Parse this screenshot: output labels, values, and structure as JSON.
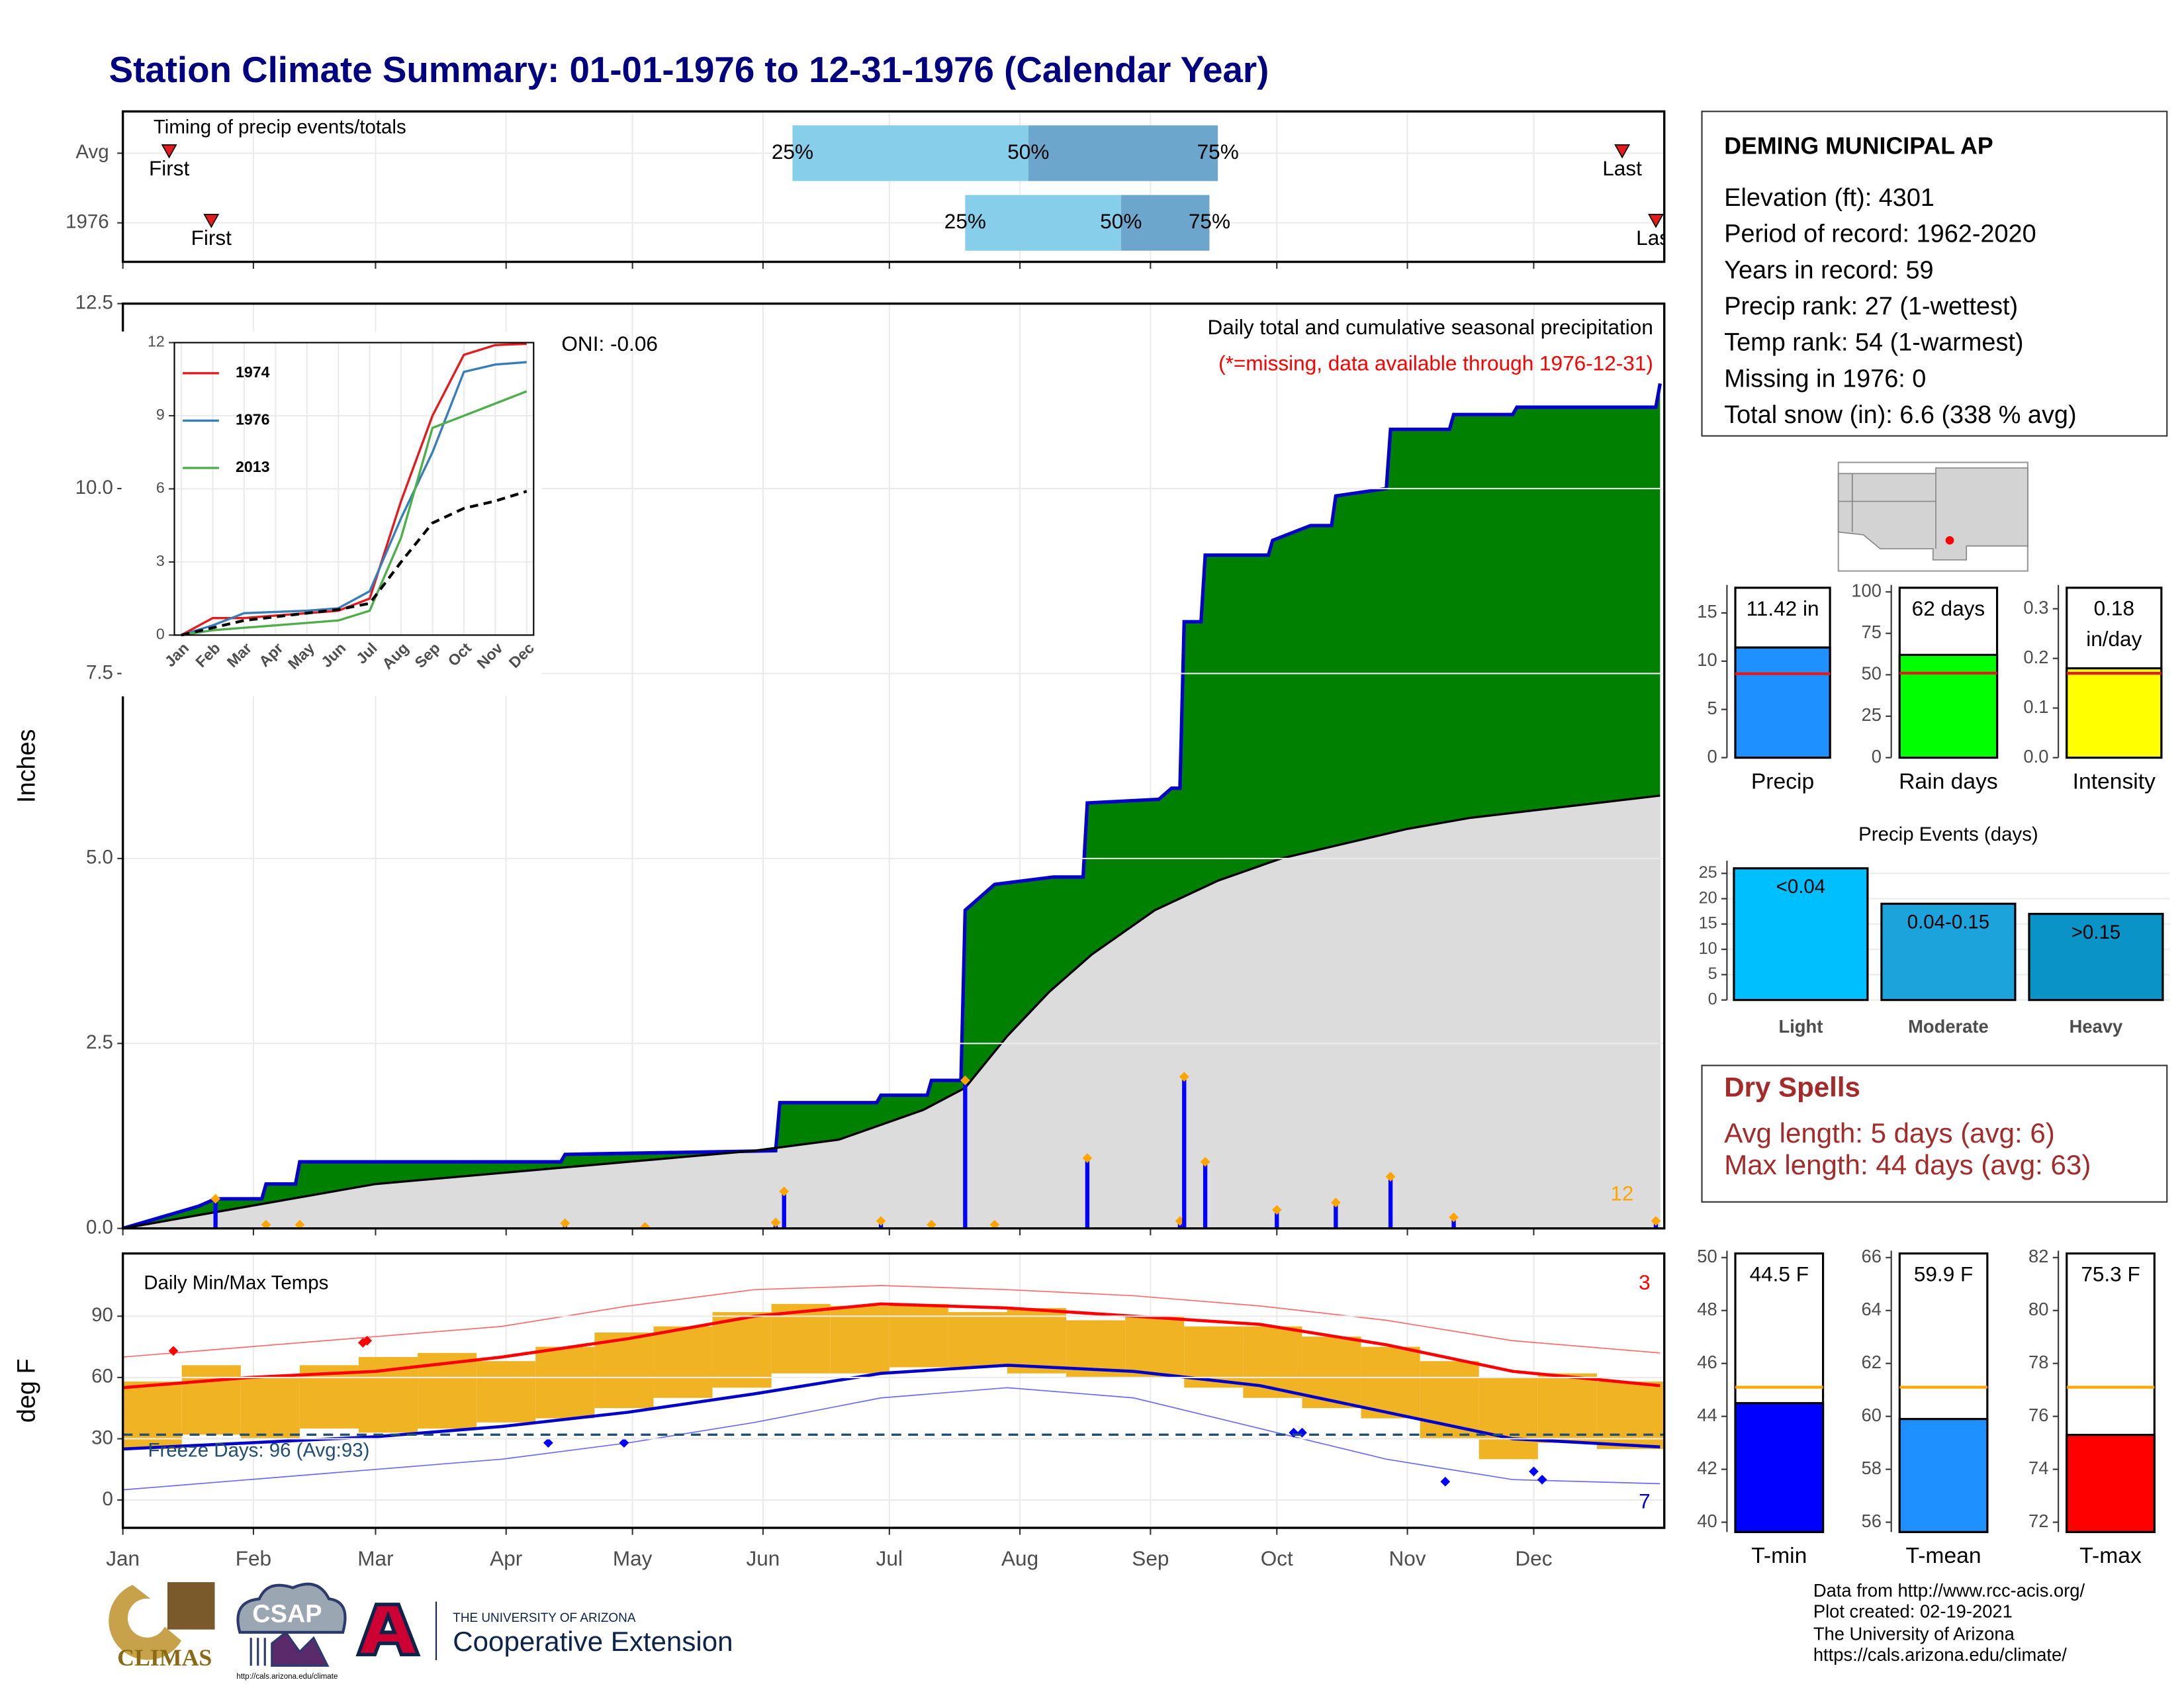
{
  "title": "Station Climate Summary: 01-01-1976 to 12-31-1976 (Calendar Year)",
  "station": {
    "name": "DEMING MUNICIPAL AP",
    "lines": [
      "Elevation (ft): 4301",
      "Period of record: 1962-2020",
      "Years in record: 59",
      "Precip rank: 27 (1-wettest)",
      "Temp rank: 54 (1-warmest)",
      "Missing in 1976: 0",
      "Total snow (in): 6.6 (338 % avg)"
    ]
  },
  "dry_spells": {
    "title": "Dry Spells",
    "lines": [
      "Avg length: 5 days (avg: 6)",
      "Max length: 44 days (avg: 63)"
    ]
  },
  "footer": {
    "climas": "CLIMAS",
    "csap": "CSAP",
    "csap_url": "http://cals.arizona.edu/climate",
    "university": "THE UNIVERSITY OF ARIZONA",
    "extension": "Cooperative Extension",
    "credits": [
      "Data from http://www.rcc-acis.org/",
      "Plot created: 02-19-2021",
      "The University of Arizona",
      "https://cals.arizona.edu/climate/"
    ]
  },
  "chart_data": [
    {
      "type": "timing",
      "title": "Timing of precip events/totals",
      "categories": [
        "Avg",
        "1976"
      ],
      "first": [
        11,
        21
      ],
      "last": [
        356,
        364
      ],
      "q25": [
        159,
        200
      ],
      "q50": [
        215,
        237
      ],
      "q75": [
        260,
        258
      ],
      "quantile_labels": [
        "25%",
        "50%",
        "75%"
      ],
      "first_label": "First",
      "last_label": "Last",
      "colors": [
        "#87ceeb",
        "#6ca6cd"
      ],
      "marker_color": "#e41a1c",
      "xlim": [
        0,
        366
      ]
    },
    {
      "type": "cumulative",
      "title": "Daily total and cumulative seasonal precipitation",
      "subtitle": "(*=missing, data available through 1976-12-31)",
      "annotation": "ONI: -0.06",
      "corner_value": 12,
      "y_label": "Inches",
      "xlim": [
        0,
        366
      ],
      "ylim": [
        0,
        12.5
      ],
      "grid": true,
      "yticks": [
        {
          "value": 0,
          "label": "0.0"
        },
        2.5,
        {
          "value": 5,
          "label": "5.0"
        },
        7.5,
        {
          "value": 10,
          "label": "10.0"
        },
        12.5
      ],
      "cumulative": {
        "color": "#0000cd",
        "fill": "#008000",
        "x": [
          0,
          18,
          22,
          33,
          34,
          41,
          42,
          104,
          105,
          155,
          156,
          179,
          180,
          191,
          192,
          199,
          200,
          203,
          207,
          221,
          228,
          229,
          246,
          249,
          251,
          252,
          256,
          257,
          272,
          273,
          282,
          287,
          288,
          300,
          301,
          315,
          316,
          330,
          331,
          364,
          365
        ],
        "values": [
          0,
          0.3,
          0.4,
          0.4,
          0.6,
          0.6,
          0.9,
          0.9,
          1.0,
          1.05,
          1.7,
          1.7,
          1.8,
          1.8,
          2.0,
          2.0,
          4.3,
          4.45,
          4.65,
          4.75,
          4.75,
          5.75,
          5.8,
          5.95,
          5.95,
          8.2,
          8.2,
          9.1,
          9.1,
          9.3,
          9.5,
          9.5,
          9.9,
          10.0,
          10.8,
          10.8,
          11.0,
          11.0,
          11.1,
          11.1,
          11.42
        ]
      },
      "average": {
        "color": "#000000",
        "fill": "#dcdcdc",
        "x": [
          0,
          30,
          60,
          90,
          120,
          150,
          170,
          190,
          200,
          210,
          220,
          230,
          245,
          260,
          275,
          290,
          305,
          320,
          335,
          350,
          365
        ],
        "values": [
          0,
          0.3,
          0.6,
          0.75,
          0.9,
          1.05,
          1.2,
          1.6,
          1.9,
          2.6,
          3.2,
          3.7,
          4.3,
          4.7,
          5.0,
          5.2,
          5.4,
          5.55,
          5.65,
          5.75,
          5.85
        ]
      },
      "daily": {
        "color": "#0000ff",
        "marker_color": "#ffa500",
        "x": [
          22,
          34,
          42,
          105,
          124,
          155,
          157,
          180,
          192,
          200,
          207,
          229,
          251,
          252,
          257,
          274,
          288,
          301,
          316,
          364
        ],
        "values": [
          0.4,
          0.05,
          0.05,
          0.07,
          0.02,
          0.08,
          0.5,
          0.1,
          0.05,
          2.0,
          0.05,
          0.95,
          0.1,
          2.05,
          0.9,
          0.25,
          0.35,
          0.7,
          0.15,
          0.1
        ]
      }
    },
    {
      "type": "line",
      "categories": [
        "Jan",
        "Feb",
        "Mar",
        "Apr",
        "May",
        "Jun",
        "Jul",
        "Aug",
        "Sep",
        "Oct",
        "Nov",
        "Dec"
      ],
      "ylim": [
        0,
        12
      ],
      "yticks": [
        0,
        3,
        6,
        9,
        12
      ],
      "grid": true,
      "series": [
        {
          "name": "1974",
          "color": "#e41a1c",
          "values": [
            0,
            0.7,
            0.7,
            0.8,
            0.9,
            1.0,
            1.5,
            5.5,
            9.0,
            11.5,
            11.9,
            11.95
          ]
        },
        {
          "name": "1976",
          "color": "#377eb8",
          "values": [
            0,
            0.4,
            0.9,
            0.95,
            1.0,
            1.1,
            1.8,
            4.8,
            7.5,
            10.8,
            11.1,
            11.2
          ]
        },
        {
          "name": "2013",
          "color": "#4daf4a",
          "values": [
            0,
            0.2,
            0.3,
            0.4,
            0.5,
            0.6,
            1.0,
            4.0,
            8.5,
            9.0,
            9.5,
            10.0
          ]
        },
        {
          "color": "#000000",
          "dash": true,
          "values": [
            0,
            0.3,
            0.6,
            0.75,
            0.9,
            1.05,
            1.3,
            3.0,
            4.6,
            5.2,
            5.5,
            5.9
          ]
        }
      ]
    },
    {
      "type": "bar",
      "categories": [
        "Precip"
      ],
      "values": [
        11.42
      ],
      "value_labels": [
        "11.42 in"
      ],
      "average": 8.7,
      "avg_color": "#e41a1c",
      "color": "#1e90ff",
      "ylim": [
        0,
        17.9
      ],
      "yticks": [
        0,
        5,
        10,
        15
      ]
    },
    {
      "type": "bar",
      "categories": [
        "Rain days"
      ],
      "values": [
        62
      ],
      "value_labels": [
        "62 days"
      ],
      "average": 51,
      "avg_color": "#e41a1c",
      "color": "#00ff00",
      "ylim": [
        0,
        104.2
      ],
      "yticks": [
        0,
        25,
        50,
        75,
        100
      ]
    },
    {
      "type": "bar",
      "categories": [
        "Intensity"
      ],
      "values": [
        0.18
      ],
      "value_labels": [
        "0.18 in/day"
      ],
      "average": 0.17,
      "avg_color": "#e41a1c",
      "color": "#ffff00",
      "ylim": [
        0,
        0.348
      ],
      "yticks": [
        {
          "value": 0,
          "label": "0.0"
        },
        0.1,
        0.2,
        0.3
      ]
    },
    {
      "type": "bar",
      "title": "Precip Events (days)",
      "categories": [
        "Light",
        "Moderate",
        "Heavy"
      ],
      "values": [
        26,
        19,
        17
      ],
      "value_labels": [
        "<0.04",
        "0.04-0.15",
        ">0.15"
      ],
      "colors": [
        "#00bfff",
        "#1ca3dc",
        "#0993c6"
      ],
      "ylim": [
        0,
        27.5
      ],
      "yticks": [
        0,
        5,
        10,
        15,
        20,
        25
      ],
      "grid": true
    },
    {
      "type": "temps",
      "title": "Daily Min/Max Temps",
      "y_label": "deg F",
      "xlim": [
        0,
        366
      ],
      "ylim": [
        -13.6,
        120.7
      ],
      "yticks": [
        0,
        30,
        60,
        90
      ],
      "grid": true,
      "xticks": [
        {
          "value": 0,
          "label": "Jan"
        },
        {
          "value": 31,
          "label": "Feb"
        },
        {
          "value": 60,
          "label": "Mar"
        },
        {
          "value": 91,
          "label": "Apr"
        },
        {
          "value": 121,
          "label": "May"
        },
        {
          "value": 152,
          "label": "Jun"
        },
        {
          "value": 182,
          "label": "Jul"
        },
        {
          "value": 213,
          "label": "Aug"
        },
        {
          "value": 244,
          "label": "Sep"
        },
        {
          "value": 274,
          "label": "Oct"
        },
        {
          "value": 305,
          "label": "Nov"
        },
        {
          "value": 335,
          "label": "Dec"
        }
      ],
      "observed": {
        "color": "#f0b323",
        "x": [
          0,
          14,
          28,
          42,
          56,
          70,
          84,
          98,
          112,
          126,
          140,
          154,
          168,
          182,
          196,
          210,
          224,
          238,
          252,
          266,
          280,
          294,
          308,
          322,
          336,
          350
        ],
        "min": [
          25,
          32,
          30,
          35,
          33,
          35,
          38,
          40,
          45,
          50,
          55,
          62,
          62,
          65,
          65,
          62,
          60,
          60,
          55,
          50,
          45,
          40,
          30,
          20,
          28,
          25
        ],
        "max": [
          58,
          66,
          60,
          66,
          70,
          72,
          68,
          75,
          82,
          85,
          92,
          96,
          95,
          96,
          92,
          94,
          88,
          90,
          85,
          85,
          80,
          75,
          68,
          60,
          62,
          58
        ]
      },
      "normal_max": {
        "color": "#ff0000",
        "x": [
          0,
          30,
          60,
          90,
          120,
          150,
          180,
          210,
          240,
          270,
          300,
          330,
          365
        ],
        "values": [
          55,
          60,
          63,
          70,
          79,
          90,
          96,
          94,
          90,
          86,
          76,
          63,
          56
        ]
      },
      "normal_min": {
        "color": "#0000cd",
        "x": [
          0,
          30,
          60,
          90,
          120,
          150,
          180,
          210,
          240,
          270,
          300,
          330,
          365
        ],
        "values": [
          25,
          28,
          31,
          36,
          43,
          52,
          62,
          66,
          63,
          56,
          43,
          30,
          26
        ]
      },
      "extreme_max": {
        "color": "#ff6a6a",
        "x": [
          0,
          30,
          60,
          90,
          120,
          150,
          180,
          210,
          240,
          270,
          300,
          330,
          365
        ],
        "values": [
          70,
          75,
          80,
          85,
          95,
          103,
          105,
          103,
          100,
          95,
          88,
          78,
          72
        ]
      },
      "extreme_min": {
        "color": "#6a6aff",
        "x": [
          0,
          30,
          60,
          90,
          120,
          150,
          180,
          210,
          240,
          270,
          300,
          330,
          365
        ],
        "values": [
          5,
          10,
          15,
          20,
          28,
          38,
          50,
          55,
          50,
          35,
          20,
          10,
          8
        ]
      },
      "record_highs": {
        "color": "#ff0000",
        "x": [
          12,
          57,
          58
        ],
        "values": [
          73,
          77,
          78
        ]
      },
      "record_lows": {
        "color": "#0000ff",
        "x": [
          101,
          119,
          278,
          280,
          314,
          335,
          337
        ],
        "values": [
          28,
          28,
          33,
          33,
          9,
          14,
          10
        ]
      },
      "freeze_line": 32,
      "freeze_label": "Freeze Days: 96 (Avg:93)",
      "high_count": 3,
      "low_count": 7
    },
    {
      "type": "bar",
      "categories": [
        "T-min"
      ],
      "values": [
        44.5
      ],
      "value_labels": [
        "44.5 F"
      ],
      "average": 45.1,
      "avg_color": "#ffa500",
      "color": "#0000ff",
      "ylim": [
        39.63,
        50.26
      ],
      "yticks": [
        40,
        42,
        44,
        46,
        48,
        50
      ]
    },
    {
      "type": "bar",
      "categories": [
        "T-mean"
      ],
      "values": [
        59.9
      ],
      "value_labels": [
        "59.9 F"
      ],
      "average": 61.1,
      "avg_color": "#ffa500",
      "color": "#1e90ff",
      "ylim": [
        55.63,
        66.26
      ],
      "yticks": [
        56,
        58,
        60,
        62,
        64,
        66
      ]
    },
    {
      "type": "bar",
      "categories": [
        "T-max"
      ],
      "values": [
        75.3
      ],
      "value_labels": [
        "75.3 F"
      ],
      "average": 77.1,
      "avg_color": "#ffa500",
      "color": "#ff0000",
      "ylim": [
        71.63,
        82.26
      ],
      "yticks": [
        72,
        74,
        76,
        78,
        80,
        82
      ]
    }
  ]
}
